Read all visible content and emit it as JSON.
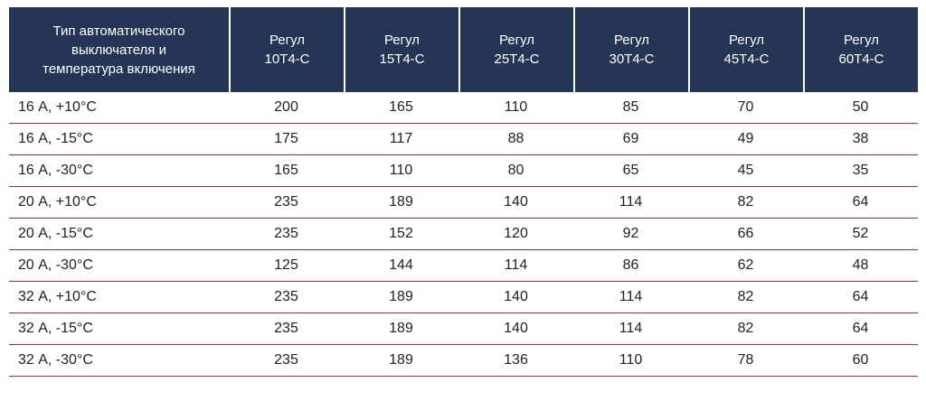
{
  "table": {
    "header_first": "Тип автоматического\nвыключателя и\nтемпература включения",
    "columns": [
      "Регул\n10Т4-С",
      "Регул\n15Т4-С",
      "Регул\n25Т4-С",
      "Регул\n30Т4-С",
      "Регул\n45Т4-С",
      "Регул\n60Т4-С"
    ],
    "rows": [
      {
        "label": "16 А, +10°С",
        "values": [
          "200",
          "165",
          "110",
          "85",
          "70",
          "50"
        ]
      },
      {
        "label": "16 А, -15°С",
        "values": [
          "175",
          "117",
          "88",
          "69",
          "49",
          "38"
        ]
      },
      {
        "label": "16 А, -30°С",
        "values": [
          "165",
          "110",
          "80",
          "65",
          "45",
          "35"
        ]
      },
      {
        "label": "20 А, +10°С",
        "values": [
          "235",
          "189",
          "140",
          "114",
          "82",
          "64"
        ]
      },
      {
        "label": "20 А, -15°С",
        "values": [
          "235",
          "152",
          "120",
          "92",
          "66",
          "52"
        ]
      },
      {
        "label": "20 А, -30°С",
        "values": [
          "125",
          "144",
          "114",
          "86",
          "62",
          "48"
        ]
      },
      {
        "label": "32 А, +10°С",
        "values": [
          "235",
          "189",
          "140",
          "114",
          "82",
          "64"
        ]
      },
      {
        "label": "32 А, -15°С",
        "values": [
          "235",
          "189",
          "140",
          "114",
          "82",
          "64"
        ]
      },
      {
        "label": "32 А, -30°С",
        "values": [
          "235",
          "189",
          "136",
          "110",
          "78",
          "60"
        ]
      }
    ]
  },
  "colors": {
    "header_bg": "#253556",
    "row_divider": "#b5263a"
  }
}
